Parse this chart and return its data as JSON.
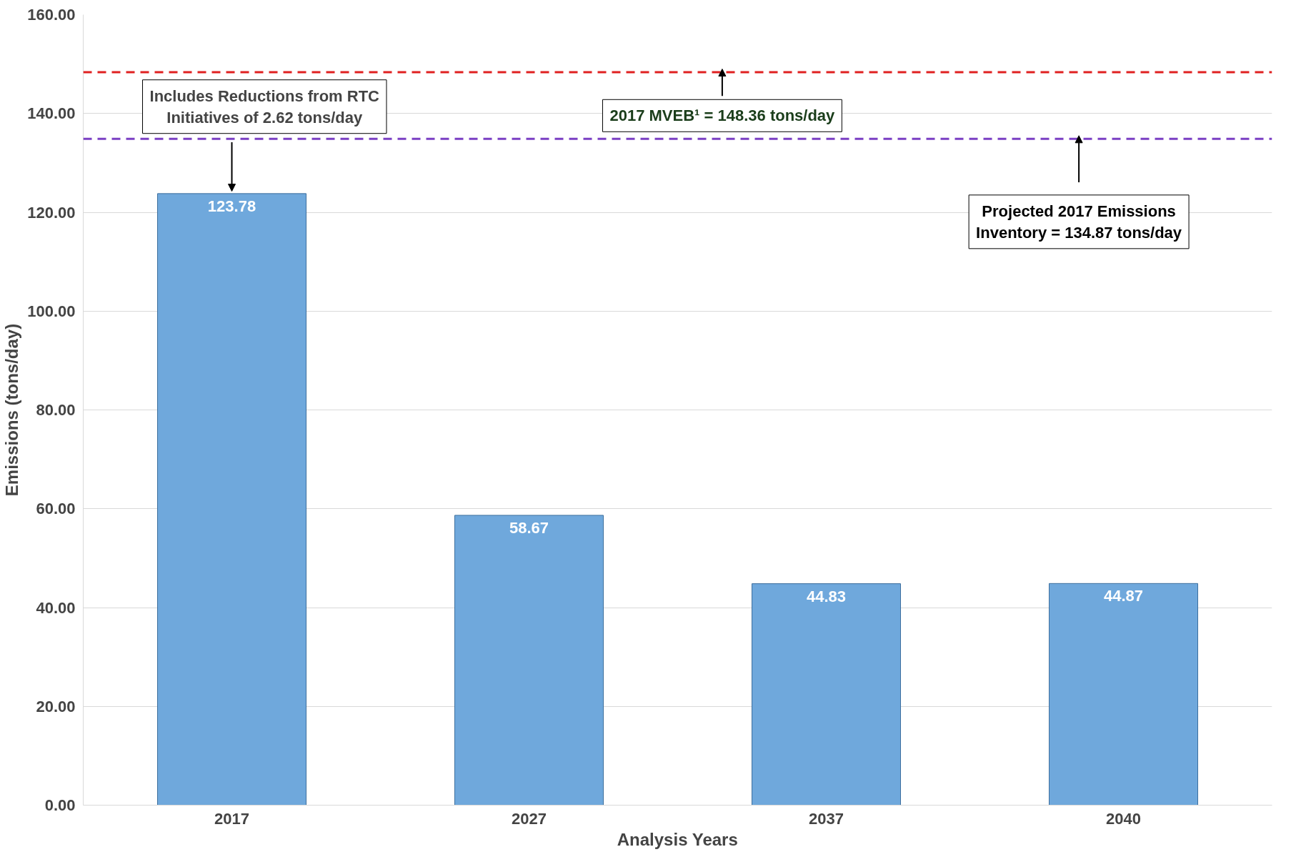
{
  "chart_data": {
    "type": "bar",
    "xlabel": "Analysis Years",
    "ylabel": "Emissions (tons/day)",
    "categories": [
      "2017",
      "2027",
      "2037",
      "2040"
    ],
    "values": [
      123.78,
      58.67,
      44.83,
      44.87
    ],
    "color": "#6fa8dc",
    "data_labels": true,
    "ylim": [
      0,
      160
    ],
    "yticks": [
      {
        "value": 0,
        "label": "0.00"
      },
      {
        "value": 20,
        "label": "20.00"
      },
      {
        "value": 40,
        "label": "40.00"
      },
      {
        "value": 60,
        "label": "60.00"
      },
      {
        "value": 80,
        "label": "80.00"
      },
      {
        "value": 100,
        "label": "100.00"
      },
      {
        "value": 120,
        "label": "120.00"
      },
      {
        "value": 140,
        "label": "140.00"
      },
      {
        "value": 160,
        "label": "160.00"
      }
    ],
    "grid": "y",
    "ref_lines": [
      {
        "axis": "y",
        "value": 148.36,
        "label": "2017 MVEB¹ = 148.36 tons/day",
        "color": "#e02020",
        "line_style": "dashed"
      },
      {
        "axis": "y",
        "value": 134.87,
        "label": "Projected 2017 Emissions\nInventory = 134.87 tons/day",
        "color": "#7b3fc4",
        "line_style": "dashed"
      }
    ],
    "annotations": [
      {
        "text": "Includes Reductions from RTC\nInitiatives of 2.62 tons/day",
        "x": "2017",
        "y": 123.78
      }
    ]
  }
}
